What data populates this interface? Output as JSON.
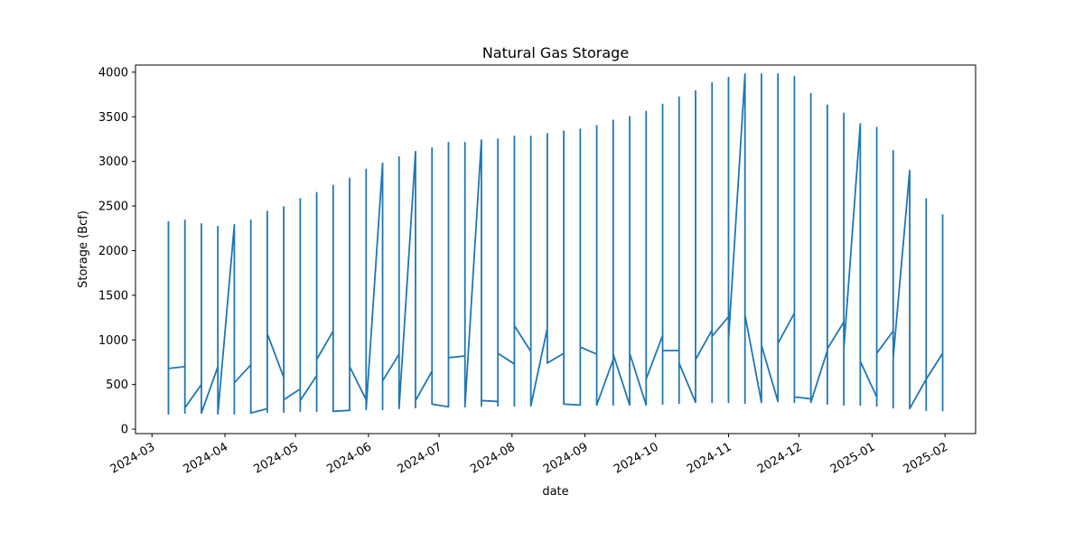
{
  "chart_data": {
    "type": "line",
    "title": "Natural Gas Storage",
    "xlabel": "date",
    "ylabel": "Storage (Bcf)",
    "xlim": [
      "2024-02-23",
      "2025-02-14"
    ],
    "ylim": [
      -50,
      4080
    ],
    "grid": false,
    "legend": "none",
    "x_ticks": [
      "2024-03-01",
      "2024-04-01",
      "2024-05-01",
      "2024-06-01",
      "2024-07-01",
      "2024-08-01",
      "2024-09-01",
      "2024-10-01",
      "2024-11-01",
      "2024-12-01",
      "2025-01-01",
      "2025-02-01"
    ],
    "x_tick_labels": [
      "2024-03",
      "2024-04",
      "2024-05",
      "2024-06",
      "2024-07",
      "2024-08",
      "2024-09",
      "2024-10",
      "2024-11",
      "2024-12",
      "2025-01",
      "2025-02"
    ],
    "y_ticks": [
      0,
      500,
      1000,
      1500,
      2000,
      2500,
      3000,
      3500,
      4000
    ],
    "y_tick_labels": [
      "0",
      "500",
      "1000",
      "1500",
      "2000",
      "2500",
      "3000",
      "3500",
      "4000"
    ],
    "series": [
      {
        "color": "#1f77b4",
        "points": [
          [
            "2024-03-08",
            2330
          ],
          [
            "2024-03-08",
            170
          ],
          [
            "2024-03-08",
            680
          ],
          [
            "2024-03-15",
            700
          ],
          [
            "2024-03-15",
            2340
          ],
          [
            "2024-03-15",
            180
          ],
          [
            "2024-03-15",
            240
          ],
          [
            "2024-03-22",
            500
          ],
          [
            "2024-03-22",
            2300
          ],
          [
            "2024-03-22",
            180
          ],
          [
            "2024-03-29",
            700
          ],
          [
            "2024-03-29",
            2270
          ],
          [
            "2024-03-29",
            170
          ],
          [
            "2024-04-05",
            2290
          ],
          [
            "2024-04-05",
            170
          ],
          [
            "2024-04-05",
            520
          ],
          [
            "2024-04-12",
            720
          ],
          [
            "2024-04-12",
            2340
          ],
          [
            "2024-04-12",
            180
          ],
          [
            "2024-04-19",
            230
          ],
          [
            "2024-04-19",
            2440
          ],
          [
            "2024-04-19",
            190
          ],
          [
            "2024-04-19",
            1070
          ],
          [
            "2024-04-26",
            580
          ],
          [
            "2024-04-26",
            2490
          ],
          [
            "2024-04-26",
            190
          ],
          [
            "2024-04-26",
            330
          ],
          [
            "2024-05-03",
            450
          ],
          [
            "2024-05-03",
            2580
          ],
          [
            "2024-05-03",
            200
          ],
          [
            "2024-05-03",
            320
          ],
          [
            "2024-05-10",
            600
          ],
          [
            "2024-05-10",
            2650
          ],
          [
            "2024-05-10",
            200
          ],
          [
            "2024-05-10",
            780
          ],
          [
            "2024-05-17",
            1100
          ],
          [
            "2024-05-17",
            2730
          ],
          [
            "2024-05-17",
            200
          ],
          [
            "2024-05-24",
            210
          ],
          [
            "2024-05-24",
            2810
          ],
          [
            "2024-05-24",
            700
          ],
          [
            "2024-05-31",
            330
          ],
          [
            "2024-05-31",
            2910
          ],
          [
            "2024-05-31",
            220
          ],
          [
            "2024-06-07",
            2980
          ],
          [
            "2024-06-07",
            220
          ],
          [
            "2024-06-07",
            540
          ],
          [
            "2024-06-14",
            840
          ],
          [
            "2024-06-14",
            3050
          ],
          [
            "2024-06-14",
            230
          ],
          [
            "2024-06-21",
            3110
          ],
          [
            "2024-06-21",
            240
          ],
          [
            "2024-06-21",
            320
          ],
          [
            "2024-06-28",
            650
          ],
          [
            "2024-06-28",
            3150
          ],
          [
            "2024-06-28",
            280
          ],
          [
            "2024-07-05",
            250
          ],
          [
            "2024-07-05",
            3210
          ],
          [
            "2024-07-05",
            800
          ],
          [
            "2024-07-12",
            820
          ],
          [
            "2024-07-12",
            3210
          ],
          [
            "2024-07-12",
            250
          ],
          [
            "2024-07-19",
            3240
          ],
          [
            "2024-07-19",
            260
          ],
          [
            "2024-07-19",
            320
          ],
          [
            "2024-07-26",
            310
          ],
          [
            "2024-07-26",
            3250
          ],
          [
            "2024-07-26",
            260
          ],
          [
            "2024-07-26",
            850
          ],
          [
            "2024-08-02",
            730
          ],
          [
            "2024-08-02",
            3280
          ],
          [
            "2024-08-02",
            260
          ],
          [
            "2024-08-02",
            1160
          ],
          [
            "2024-08-09",
            870
          ],
          [
            "2024-08-09",
            3280
          ],
          [
            "2024-08-09",
            260
          ],
          [
            "2024-08-16",
            1130
          ],
          [
            "2024-08-16",
            3310
          ],
          [
            "2024-08-16",
            740
          ],
          [
            "2024-08-23",
            850
          ],
          [
            "2024-08-23",
            3340
          ],
          [
            "2024-08-23",
            280
          ],
          [
            "2024-08-30",
            270
          ],
          [
            "2024-08-30",
            3360
          ],
          [
            "2024-08-30",
            920
          ],
          [
            "2024-09-06",
            840
          ],
          [
            "2024-09-06",
            3400
          ],
          [
            "2024-09-06",
            270
          ],
          [
            "2024-09-13",
            780
          ],
          [
            "2024-09-13",
            3460
          ],
          [
            "2024-09-13",
            270
          ],
          [
            "2024-09-13",
            840
          ],
          [
            "2024-09-20",
            270
          ],
          [
            "2024-09-20",
            3500
          ],
          [
            "2024-09-20",
            850
          ],
          [
            "2024-09-27",
            270
          ],
          [
            "2024-09-27",
            3560
          ],
          [
            "2024-09-27",
            270
          ],
          [
            "2024-09-27",
            560
          ],
          [
            "2024-10-04",
            1050
          ],
          [
            "2024-10-04",
            3640
          ],
          [
            "2024-10-04",
            280
          ],
          [
            "2024-10-04",
            880
          ],
          [
            "2024-10-11",
            880
          ],
          [
            "2024-10-11",
            3720
          ],
          [
            "2024-10-11",
            290
          ],
          [
            "2024-10-11",
            740
          ],
          [
            "2024-10-18",
            300
          ],
          [
            "2024-10-18",
            3790
          ],
          [
            "2024-10-18",
            300
          ],
          [
            "2024-10-18",
            780
          ],
          [
            "2024-10-25",
            1110
          ],
          [
            "2024-10-25",
            3880
          ],
          [
            "2024-10-25",
            300
          ],
          [
            "2024-10-25",
            1040
          ],
          [
            "2024-11-01",
            1260
          ],
          [
            "2024-11-01",
            3940
          ],
          [
            "2024-11-01",
            300
          ],
          [
            "2024-11-01",
            1000
          ],
          [
            "2024-11-08",
            3980
          ],
          [
            "2024-11-08",
            290
          ],
          [
            "2024-11-08",
            1280
          ],
          [
            "2024-11-15",
            300
          ],
          [
            "2024-11-15",
            3980
          ],
          [
            "2024-11-15",
            300
          ],
          [
            "2024-11-15",
            940
          ],
          [
            "2024-11-22",
            310
          ],
          [
            "2024-11-22",
            3980
          ],
          [
            "2024-11-22",
            310
          ],
          [
            "2024-11-22",
            960
          ],
          [
            "2024-11-29",
            1300
          ],
          [
            "2024-11-29",
            3950
          ],
          [
            "2024-11-29",
            300
          ],
          [
            "2024-11-29",
            360
          ],
          [
            "2024-12-06",
            340
          ],
          [
            "2024-12-06",
            3760
          ],
          [
            "2024-12-06",
            300
          ],
          [
            "2024-12-13",
            880
          ],
          [
            "2024-12-13",
            3630
          ],
          [
            "2024-12-13",
            280
          ],
          [
            "2024-12-13",
            900
          ],
          [
            "2024-12-20",
            1200
          ],
          [
            "2024-12-20",
            3540
          ],
          [
            "2024-12-20",
            270
          ],
          [
            "2024-12-20",
            900
          ],
          [
            "2024-12-27",
            3420
          ],
          [
            "2024-12-27",
            270
          ],
          [
            "2024-12-27",
            760
          ],
          [
            "2025-01-03",
            360
          ],
          [
            "2025-01-03",
            3380
          ],
          [
            "2025-01-03",
            260
          ],
          [
            "2025-01-03",
            850
          ],
          [
            "2025-01-10",
            1100
          ],
          [
            "2025-01-10",
            3120
          ],
          [
            "2025-01-10",
            240
          ],
          [
            "2025-01-10",
            800
          ],
          [
            "2025-01-17",
            2900
          ],
          [
            "2025-01-17",
            230
          ],
          [
            "2025-01-17",
            230
          ],
          [
            "2025-01-24",
            560
          ],
          [
            "2025-01-24",
            2580
          ],
          [
            "2025-01-24",
            210
          ],
          [
            "2025-01-24",
            560
          ],
          [
            "2025-01-31",
            850
          ],
          [
            "2025-01-31",
            2400
          ],
          [
            "2025-01-31",
            200
          ]
        ]
      }
    ]
  }
}
